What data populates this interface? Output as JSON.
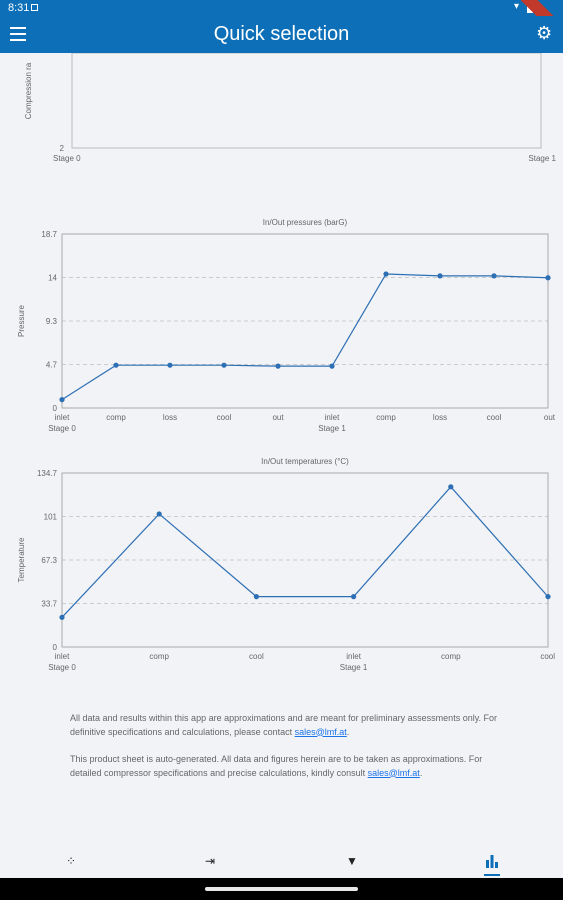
{
  "status_bar": {
    "time": "8:31"
  },
  "app_bar": {
    "title": "Quick selection",
    "menu_icon": "menu-icon",
    "settings_icon": "gear-icon"
  },
  "chart_data": [
    {
      "type": "line",
      "title": "",
      "ylabel": "Compression ra",
      "y_ticks": [
        "2"
      ],
      "x_start_label": "Stage 0",
      "x_end_label": "Stage 1",
      "series": []
    },
    {
      "type": "line",
      "title": "In/Out pressures (barG)",
      "ylabel": "Pressure",
      "ylim": [
        0,
        18.7
      ],
      "y_ticks": [
        "18.7",
        "14",
        "9.3",
        "4.7",
        "0"
      ],
      "categories": [
        "inlet",
        "comp",
        "loss",
        "cool",
        "out",
        "inlet",
        "comp",
        "loss",
        "cool",
        "out"
      ],
      "stage_labels": [
        "Stage 0",
        "Stage 1"
      ],
      "values": [
        0.9,
        4.6,
        4.6,
        4.6,
        4.5,
        4.5,
        14.4,
        14.2,
        14.2,
        14.0
      ],
      "color": "#2d6fb4"
    },
    {
      "type": "line",
      "title": "In/Out temperatures (°C)",
      "ylabel": "Temperature",
      "ylim": [
        0,
        134.7
      ],
      "y_ticks": [
        "134.7",
        "101",
        "67.3",
        "33.7",
        "0"
      ],
      "categories": [
        "inlet",
        "comp",
        "cool",
        "inlet",
        "comp",
        "cool"
      ],
      "stage_labels": [
        "Stage 0",
        "Stage 1"
      ],
      "values": [
        23,
        103,
        39,
        39,
        124,
        39
      ],
      "color": "#2d6fb4"
    }
  ],
  "disclaimer": {
    "p1_text": "All data and results within this app are approximations and are meant for preliminary assessments only. For definitive specifications and calculations, please contact ",
    "p1_link": "sales@lmf.at",
    "p1_end": ".",
    "p2_text": "This product sheet is auto-generated. All data and figures herein are to be taken as approximations. For detailed compressor specifications and precise calculations, kindly consult ",
    "p2_link": "sales@lmf.at",
    "p2_end": "."
  },
  "bottom_nav": {
    "items": [
      {
        "icon": "grid-dots-icon",
        "glyph": "⁘"
      },
      {
        "icon": "input-icon",
        "glyph": "⇥"
      },
      {
        "icon": "filter-icon",
        "glyph": "▼"
      },
      {
        "icon": "bar-chart-icon",
        "glyph": "▮"
      }
    ]
  }
}
